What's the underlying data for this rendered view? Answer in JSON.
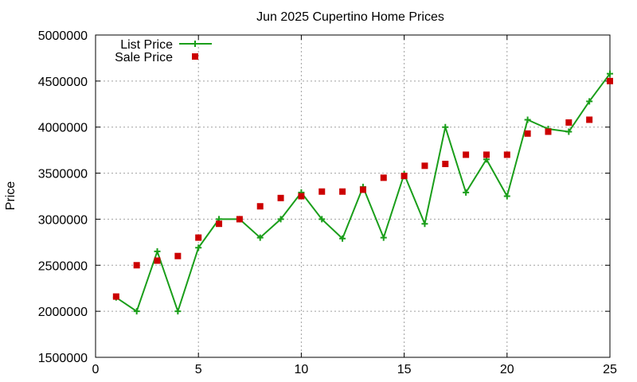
{
  "chart_data": {
    "type": "line",
    "title": "Jun 2025 Cupertino Home Prices",
    "xlabel": "",
    "ylabel": "Price",
    "xlim": [
      0,
      25
    ],
    "ylim": [
      1500000,
      5000000
    ],
    "x_ticks": [
      0,
      5,
      10,
      15,
      20,
      25
    ],
    "x_tick_labels": [
      "0",
      "5",
      "10",
      "15",
      "20",
      "25"
    ],
    "y_ticks": [
      1500000,
      2000000,
      2500000,
      3000000,
      3500000,
      4000000,
      4500000,
      5000000
    ],
    "y_tick_labels": [
      "1500000",
      "2000000",
      "2500000",
      "3000000",
      "3500000",
      "4000000",
      "4500000",
      "5000000"
    ],
    "grid": true,
    "legend_position": "top-left",
    "x": [
      1,
      2,
      3,
      4,
      5,
      6,
      7,
      8,
      9,
      10,
      11,
      12,
      13,
      14,
      15,
      16,
      17,
      18,
      19,
      20,
      21,
      22,
      23,
      24,
      25
    ],
    "series": [
      {
        "name": "List Price",
        "style": "line+cross",
        "color": "#1a9e1a",
        "values": [
          2150000,
          2000000,
          2650000,
          2000000,
          2690000,
          3000000,
          3000000,
          2800000,
          3000000,
          3290000,
          3000000,
          2790000,
          3350000,
          2800000,
          3490000,
          2950000,
          4000000,
          3290000,
          3650000,
          3250000,
          4080000,
          3980000,
          3950000,
          4280000,
          4580000
        ]
      },
      {
        "name": "Sale Price",
        "style": "square",
        "color": "#cc0000",
        "values": [
          2160000,
          2500000,
          2550000,
          2600000,
          2800000,
          2950000,
          3000000,
          3140000,
          3230000,
          3250000,
          3300000,
          3300000,
          3320000,
          3450000,
          3470000,
          3580000,
          3600000,
          3700000,
          3700000,
          3700000,
          3930000,
          3950000,
          4050000,
          4080000,
          4500000
        ]
      }
    ]
  }
}
